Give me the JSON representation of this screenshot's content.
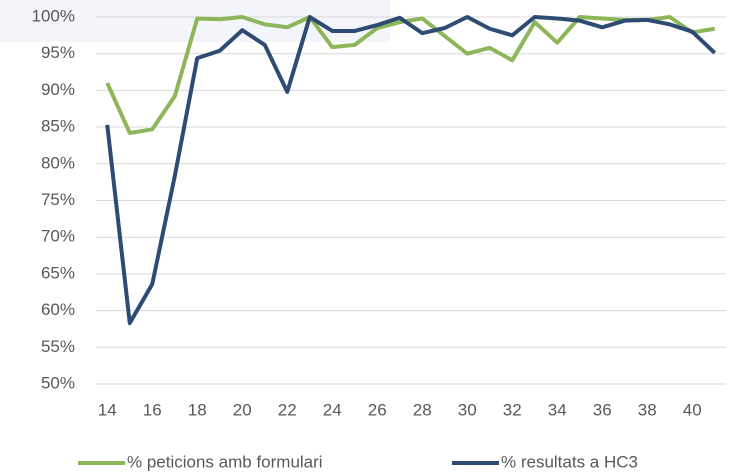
{
  "chart_data": {
    "type": "line",
    "x": [
      14,
      15,
      16,
      17,
      18,
      19,
      20,
      21,
      22,
      23,
      24,
      25,
      26,
      27,
      28,
      29,
      30,
      31,
      32,
      33,
      34,
      35,
      36,
      37,
      38,
      39,
      40,
      41
    ],
    "series": [
      {
        "name": "% peticions amb formulari",
        "color": "#8db65a",
        "values": [
          91,
          84.2,
          84.7,
          89.2,
          99.8,
          99.7,
          100,
          99,
          98.6,
          100,
          95.9,
          96.2,
          98.5,
          99.3,
          99.8,
          97.4,
          95,
          95.8,
          94.1,
          99.3,
          96.5,
          100,
          99.8,
          99.6,
          99.6,
          100,
          97.9,
          98.4
        ]
      },
      {
        "name": "% resultats a HC3",
        "color": "#2e4b74",
        "values": [
          85.3,
          58.3,
          63.6,
          78.3,
          94.4,
          95.4,
          98.2,
          96.2,
          89.8,
          100,
          98.1,
          98.1,
          98.9,
          99.9,
          97.8,
          98.5,
          100,
          98.4,
          97.5,
          100,
          99.8,
          99.5,
          98.6,
          99.5,
          99.6,
          99,
          98,
          95.1
        ]
      }
    ],
    "xlim": [
      13.5,
      41.5
    ],
    "xticks": [
      14,
      16,
      18,
      20,
      22,
      24,
      26,
      28,
      30,
      32,
      34,
      36,
      38,
      40
    ],
    "ylim": [
      50,
      100
    ],
    "yticks": [
      {
        "value": 50,
        "label": "50%"
      },
      {
        "value": 55,
        "label": "55%"
      },
      {
        "value": 60,
        "label": "60%"
      },
      {
        "value": 65,
        "label": "65%"
      },
      {
        "value": 70,
        "label": "70%"
      },
      {
        "value": 75,
        "label": "75%"
      },
      {
        "value": 80,
        "label": "80%"
      },
      {
        "value": 85,
        "label": "85%"
      },
      {
        "value": 90,
        "label": "90%"
      },
      {
        "value": 95,
        "label": "95%"
      },
      {
        "value": 100,
        "label": "100%"
      }
    ],
    "grid": true,
    "legend": "bottom"
  }
}
